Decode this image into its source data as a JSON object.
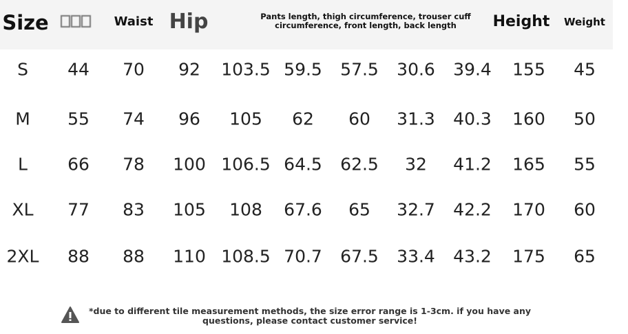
{
  "headers": {
    "size": "Size",
    "waist": "Waist",
    "hip": "Hip",
    "pants": "Pants length, thigh circumference, trouser cuff circumference, front length, back length",
    "height": "Height",
    "weight": "Weight"
  },
  "rows": [
    [
      "S",
      "44",
      "70",
      "92",
      "103.5",
      "59.5",
      "57.5",
      "30.6",
      "39.4",
      "155",
      "45"
    ],
    [
      "M",
      "55",
      "74",
      "96",
      "105",
      "62",
      "60",
      "31.3",
      "40.3",
      "160",
      "50"
    ],
    [
      "L",
      "66",
      "78",
      "100",
      "106.5",
      "64.5",
      "62.5",
      "32",
      "41.2",
      "165",
      "55"
    ],
    [
      "XL",
      "77",
      "83",
      "105",
      "108",
      "67.6",
      "65",
      "32.7",
      "42.2",
      "170",
      "60"
    ],
    [
      "2XL",
      "88",
      "88",
      "110",
      "108.5",
      "70.7",
      "67.5",
      "33.4",
      "43.2",
      "175",
      "65"
    ]
  ],
  "note": {
    "icon": "warning-icon",
    "text": "*due to different tile measurement methods, the size error range is 1-3cm. if you have any questions, please contact customer service!"
  }
}
